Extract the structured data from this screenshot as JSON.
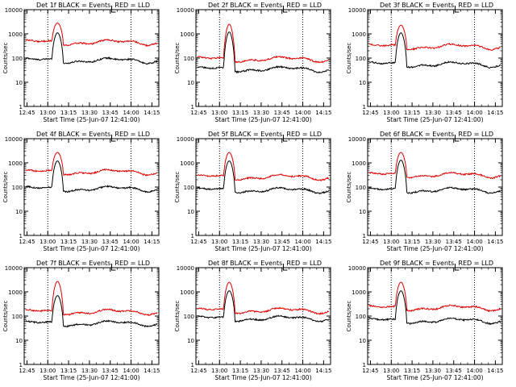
{
  "colors": {
    "events": "#000000",
    "lld": "#e00000",
    "axis": "#000000",
    "marker": "#000000"
  },
  "chart_data": [
    {
      "type": "line",
      "title": "Det 1f BLACK = Events, RED = LLD",
      "xlabel": "Start Time (25-Jun-07 12:41:00)",
      "ylabel": "Counts/sec",
      "yscale": "log",
      "ylim": [
        1,
        10000
      ],
      "xlim": [
        "12:45",
        "14:15"
      ],
      "xticks": [
        "12:45",
        "13:00",
        "13:15",
        "13:30",
        "13:45",
        "14:00",
        "14:15"
      ],
      "yticks": [
        "1",
        "10",
        "100",
        "1000",
        "10000"
      ],
      "markers": [
        "13:00",
        "14:00"
      ],
      "series": [
        {
          "key": "events",
          "base": 80,
          "peak": 1100
        },
        {
          "key": "lld",
          "base": 450,
          "peak": 2800
        }
      ]
    },
    {
      "type": "line",
      "title": "Det 2f BLACK = Events, RED = LLD",
      "xlabel": "Start Time (25-Jun-07 12:41:00)",
      "ylabel": "Counts/sec",
      "yscale": "log",
      "ylim": [
        1,
        10000
      ],
      "xlim": [
        "12:45",
        "14:15"
      ],
      "xticks": [
        "12:45",
        "13:00",
        "13:15",
        "13:30",
        "13:45",
        "14:00",
        "14:15"
      ],
      "yticks": [
        "1",
        "10",
        "100",
        "1000",
        "10000"
      ],
      "markers": [
        "13:00",
        "14:00"
      ],
      "series": [
        {
          "key": "events",
          "base": 35,
          "peak": 1200
        },
        {
          "key": "lld",
          "base": 90,
          "peak": 2500
        }
      ]
    },
    {
      "type": "line",
      "title": "Det 3f BLACK = Events, RED = LLD",
      "xlabel": "Start Time (25-Jun-07 12:41:00)",
      "ylabel": "Counts/sec",
      "yscale": "log",
      "ylim": [
        1,
        10000
      ],
      "xlim": [
        "12:45",
        "14:15"
      ],
      "xticks": [
        "12:45",
        "13:00",
        "13:15",
        "13:30",
        "13:45",
        "14:00",
        "14:15"
      ],
      "yticks": [
        "1",
        "10",
        "100",
        "1000",
        "10000"
      ],
      "markers": [
        "13:00",
        "14:00"
      ],
      "series": [
        {
          "key": "events",
          "base": 55,
          "peak": 1100
        },
        {
          "key": "lld",
          "base": 300,
          "peak": 2300
        }
      ]
    },
    {
      "type": "line",
      "title": "Det 4f BLACK = Events, RED = LLD",
      "xlabel": "Start Time (25-Jun-07 12:41:00)",
      "ylabel": "Counts/sec",
      "yscale": "log",
      "ylim": [
        1,
        10000
      ],
      "xlim": [
        "12:45",
        "14:15"
      ],
      "xticks": [
        "12:45",
        "13:00",
        "13:15",
        "13:30",
        "13:45",
        "14:00",
        "14:15"
      ],
      "yticks": [
        "1",
        "10",
        "100",
        "1000",
        "10000"
      ],
      "markers": [
        "13:00",
        "14:00"
      ],
      "series": [
        {
          "key": "events",
          "base": 85,
          "peak": 1200
        },
        {
          "key": "lld",
          "base": 420,
          "peak": 2700
        }
      ]
    },
    {
      "type": "line",
      "title": "Det 5f BLACK = Events, RED = LLD",
      "xlabel": "Start Time (25-Jun-07 12:41:00)",
      "ylabel": "Counts/sec",
      "yscale": "log",
      "ylim": [
        1,
        10000
      ],
      "xlim": [
        "12:45",
        "14:15"
      ],
      "xticks": [
        "12:45",
        "13:00",
        "13:15",
        "13:30",
        "13:45",
        "14:00",
        "14:15"
      ],
      "yticks": [
        "1",
        "10",
        "100",
        "1000",
        "10000"
      ],
      "markers": [
        "13:00",
        "14:00"
      ],
      "series": [
        {
          "key": "events",
          "base": 75,
          "peak": 1200
        },
        {
          "key": "lld",
          "base": 260,
          "peak": 2700
        }
      ]
    },
    {
      "type": "line",
      "title": "Det 6f BLACK = Events, RED = LLD",
      "xlabel": "Start Time (25-Jun-07 12:41:00)",
      "ylabel": "Counts/sec",
      "yscale": "log",
      "ylim": [
        1,
        10000
      ],
      "xlim": [
        "12:45",
        "14:15"
      ],
      "xticks": [
        "12:45",
        "13:00",
        "13:15",
        "13:30",
        "13:45",
        "14:00",
        "14:15"
      ],
      "yticks": [
        "1",
        "10",
        "100",
        "1000",
        "10000"
      ],
      "markers": [
        "13:00",
        "14:00"
      ],
      "series": [
        {
          "key": "events",
          "base": 75,
          "peak": 1300
        },
        {
          "key": "lld",
          "base": 320,
          "peak": 2700
        }
      ]
    },
    {
      "type": "line",
      "title": "Det 7f BLACK = Events, RED = LLD",
      "xlabel": "Start Time (25-Jun-07 12:41:00)",
      "ylabel": "Counts/sec",
      "yscale": "log",
      "ylim": [
        1,
        10000
      ],
      "xlim": [
        "12:45",
        "14:15"
      ],
      "xticks": [
        "12:45",
        "13:00",
        "13:15",
        "13:30",
        "13:45",
        "14:00",
        "14:15"
      ],
      "yticks": [
        "1",
        "10",
        "100",
        "1000",
        "10000"
      ],
      "markers": [
        "13:00",
        "14:00"
      ],
      "series": [
        {
          "key": "events",
          "base": 50,
          "peak": 700
        },
        {
          "key": "lld",
          "base": 150,
          "peak": 2700
        }
      ]
    },
    {
      "type": "line",
      "title": "Det 8f BLACK = Events, RED = LLD",
      "xlabel": "Start Time (25-Jun-07 12:41:00)",
      "ylabel": "Counts/sec",
      "yscale": "log",
      "ylim": [
        1,
        10000
      ],
      "xlim": [
        "12:45",
        "14:15"
      ],
      "xticks": [
        "12:45",
        "13:00",
        "13:15",
        "13:30",
        "13:45",
        "14:00",
        "14:15"
      ],
      "yticks": [
        "1",
        "10",
        "100",
        "1000",
        "10000"
      ],
      "markers": [
        "13:00",
        "14:00"
      ],
      "series": [
        {
          "key": "events",
          "base": 80,
          "peak": 1100
        },
        {
          "key": "lld",
          "base": 170,
          "peak": 2500
        }
      ]
    },
    {
      "type": "line",
      "title": "Det 9f BLACK = Events, RED = LLD",
      "xlabel": "Start Time (25-Jun-07 12:41:00)",
      "ylabel": "Counts/sec",
      "yscale": "log",
      "ylim": [
        1,
        10000
      ],
      "xlim": [
        "12:45",
        "14:15"
      ],
      "xticks": [
        "12:45",
        "13:00",
        "13:15",
        "13:30",
        "13:45",
        "14:00",
        "14:15"
      ],
      "yticks": [
        "1",
        "10",
        "100",
        "1000",
        "10000"
      ],
      "markers": [
        "13:00",
        "14:00"
      ],
      "series": [
        {
          "key": "events",
          "base": 65,
          "peak": 1100
        },
        {
          "key": "lld",
          "base": 220,
          "peak": 2500
        }
      ]
    }
  ]
}
